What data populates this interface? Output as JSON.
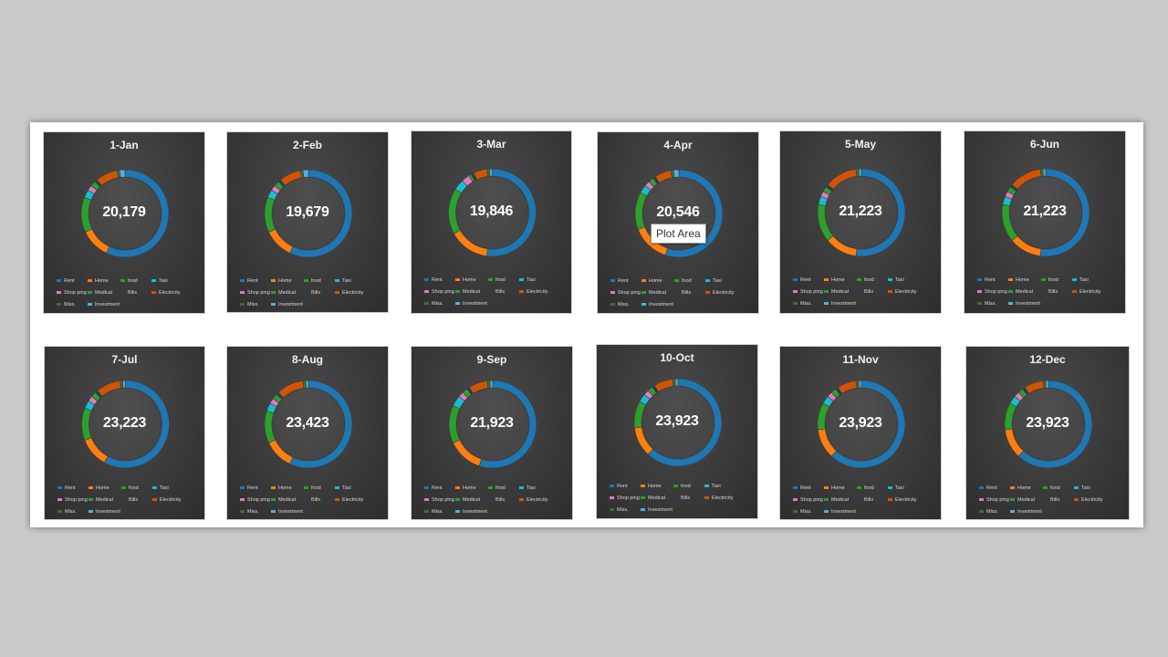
{
  "tooltip": "Plot Area",
  "categories": [
    "Rent",
    "Home",
    "food",
    "Taxi",
    "Shop ping",
    "Medical",
    "Bills",
    "Electricity",
    "Miss.",
    "Investment"
  ],
  "colors": [
    "#1f77b4",
    "#ff7f0e",
    "#2ca02c",
    "#17becf",
    "#e377c2",
    "#2ca02c",
    "#1f3f5f",
    "#d35400",
    "#3b6e3b",
    "#4fb0e0"
  ],
  "chart_data": [
    {
      "type": "pie",
      "title": "1-Jan",
      "total": "20,179",
      "values": [
        57,
        11,
        13,
        3,
        2,
        2,
        1,
        8,
        1,
        2
      ]
    },
    {
      "type": "pie",
      "title": "2-Feb",
      "total": "19,679",
      "values": [
        57,
        11,
        13,
        3,
        2,
        2,
        1,
        8,
        1,
        2
      ]
    },
    {
      "type": "pie",
      "title": "3-Mar",
      "total": "19,846",
      "values": [
        52,
        15,
        17,
        4,
        3,
        1,
        1,
        5,
        1,
        1
      ]
    },
    {
      "type": "pie",
      "title": "4-Apr",
      "total": "20,546",
      "values": [
        55,
        14,
        14,
        3,
        2,
        2,
        1,
        6,
        1,
        2
      ]
    },
    {
      "type": "pie",
      "title": "5-May",
      "total": "21,223",
      "values": [
        52,
        12,
        14,
        3,
        2,
        2,
        1,
        12,
        1,
        1
      ]
    },
    {
      "type": "pie",
      "title": "6-Jun",
      "total": "21,223",
      "values": [
        52,
        12,
        14,
        3,
        2,
        2,
        1,
        12,
        1,
        1
      ]
    },
    {
      "type": "pie",
      "title": "7-Jul",
      "total": "23,223",
      "values": [
        58,
        11,
        12,
        3,
        2,
        2,
        1,
        9,
        1,
        1
      ]
    },
    {
      "type": "pie",
      "title": "8-Aug",
      "total": "23,423",
      "values": [
        57,
        11,
        12,
        3,
        2,
        2,
        1,
        10,
        1,
        1
      ]
    },
    {
      "type": "pie",
      "title": "9-Sep",
      "total": "21,923",
      "values": [
        55,
        13,
        14,
        4,
        2,
        2,
        1,
        7,
        1,
        1
      ]
    },
    {
      "type": "pie",
      "title": "10-Oct",
      "total": "23,923",
      "values": [
        62,
        11,
        10,
        3,
        2,
        2,
        1,
        7,
        1,
        1
      ]
    },
    {
      "type": "pie",
      "title": "11-Nov",
      "total": "23,923",
      "values": [
        62,
        11,
        10,
        3,
        2,
        2,
        1,
        7,
        1,
        1
      ]
    },
    {
      "type": "pie",
      "title": "12-Dec",
      "total": "23,923",
      "values": [
        62,
        11,
        10,
        3,
        2,
        2,
        1,
        7,
        1,
        1
      ]
    }
  ]
}
